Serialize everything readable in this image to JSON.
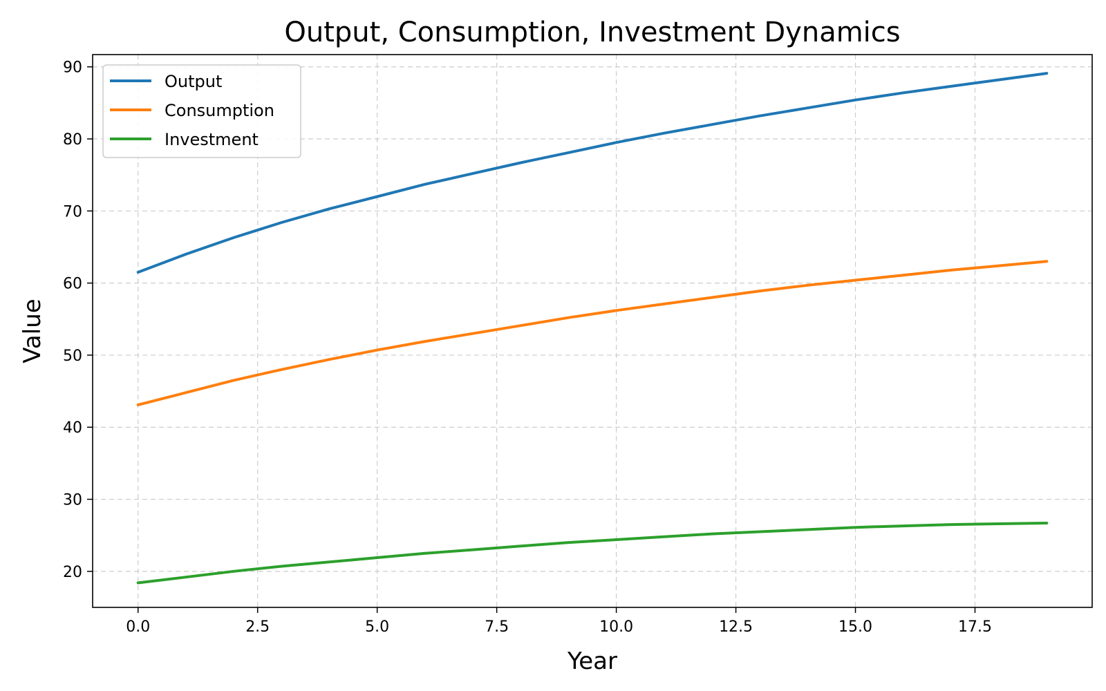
{
  "chart_data": {
    "type": "line",
    "title": "Output, Consumption, Investment Dynamics",
    "xlabel": "Year",
    "ylabel": "Value",
    "xlim": [
      -0.95,
      19.95
    ],
    "ylim": [
      15.0,
      91.7
    ],
    "xticks": [
      "0.0",
      "2.5",
      "5.0",
      "7.5",
      "10.0",
      "12.5",
      "15.0",
      "17.5"
    ],
    "xtick_values": [
      0,
      2.5,
      5,
      7.5,
      10,
      12.5,
      15,
      17.5
    ],
    "yticks": [
      "20",
      "30",
      "40",
      "50",
      "60",
      "70",
      "80",
      "90"
    ],
    "ytick_values": [
      20,
      30,
      40,
      50,
      60,
      70,
      80,
      90
    ],
    "grid": true,
    "legend_position": "top-left",
    "x": [
      0,
      1,
      2,
      3,
      4,
      5,
      6,
      7,
      8,
      9,
      10,
      11,
      12,
      13,
      14,
      15,
      16,
      17,
      18,
      19
    ],
    "series": [
      {
        "name": "Output",
        "color": "#1f77b4",
        "values": [
          61.5,
          64.0,
          66.3,
          68.4,
          70.3,
          72.0,
          73.7,
          75.2,
          76.7,
          78.1,
          79.5,
          80.8,
          82.0,
          83.2,
          84.3,
          85.4,
          86.4,
          87.3,
          88.2,
          89.1
        ]
      },
      {
        "name": "Consumption",
        "color": "#ff7f0e",
        "values": [
          43.1,
          44.8,
          46.5,
          48.0,
          49.4,
          50.7,
          51.9,
          53.0,
          54.1,
          55.2,
          56.2,
          57.1,
          58.0,
          58.9,
          59.7,
          60.4,
          61.1,
          61.8,
          62.4,
          63.0
        ]
      },
      {
        "name": "Investment",
        "color": "#2ca02c",
        "values": [
          18.4,
          19.2,
          20.0,
          20.7,
          21.3,
          21.9,
          22.5,
          23.0,
          23.5,
          24.0,
          24.4,
          24.8,
          25.2,
          25.5,
          25.8,
          26.1,
          26.3,
          26.5,
          26.6,
          26.7
        ]
      }
    ]
  }
}
